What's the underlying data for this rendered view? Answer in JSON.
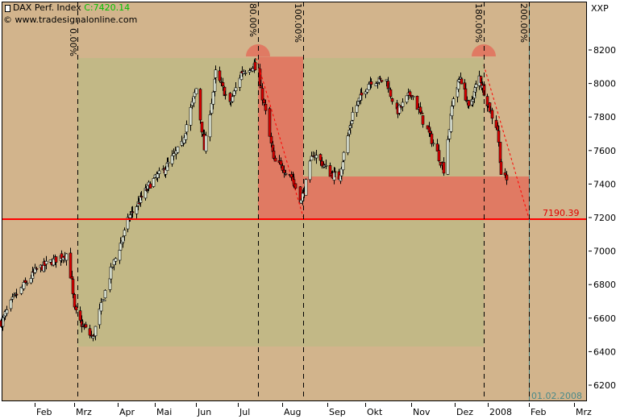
{
  "header": {
    "instrument": "DAX Perf. Index",
    "close_label": "C:7420.14",
    "copyright": "© www.tradesignalonline.com",
    "axis_unit": "XXP"
  },
  "colors": {
    "background": "#d2b48c",
    "zone_olive": "#c2b886",
    "zone_red": "#e07a63",
    "up_candle": "#f0f8e8",
    "down_candle": "#e00000",
    "level_line": "#ff0000",
    "close_text": "#00c000",
    "date_marker": "#4a8a8a"
  },
  "chart_data": {
    "type": "candlestick",
    "title": "DAX Perf. Index",
    "ylabel": "XXP",
    "ylim": [
      6150,
      8300
    ],
    "grid": false,
    "y_ticks": [
      8200,
      8000,
      7800,
      7600,
      7400,
      7200,
      7000,
      6800,
      6600,
      6400,
      6200
    ],
    "x_ticks": [
      "Feb",
      "Mrz",
      "Apr",
      "Mai",
      "Jun",
      "Jul",
      "Aug",
      "Sep",
      "Okt",
      "Nov",
      "Dez",
      "2008",
      "Feb",
      "Mrz"
    ],
    "last_close": 7420.14,
    "approx_closes": [
      [
        "2007-01-08",
        6575
      ],
      [
        "2007-01-17",
        6720
      ],
      [
        "2007-02-02",
        6888
      ],
      [
        "2007-02-23",
        6984
      ],
      [
        "2007-02-27",
        6815
      ],
      [
        "2007-03-01",
        6647
      ],
      [
        "2007-03-05",
        6575
      ],
      [
        "2007-03-14",
        6479
      ],
      [
        "2007-03-20",
        6670
      ],
      [
        "2007-03-28",
        6911
      ],
      [
        "2007-04-10",
        7200
      ],
      [
        "2007-04-26",
        7392
      ],
      [
        "2007-05-08",
        7488
      ],
      [
        "2007-05-21",
        7633
      ],
      [
        "2007-06-01",
        7970
      ],
      [
        "2007-06-07",
        7608
      ],
      [
        "2007-06-15",
        8065
      ],
      [
        "2007-06-25",
        7873
      ],
      [
        "2007-07-03",
        8065
      ],
      [
        "2007-07-12",
        8113
      ],
      [
        "2007-07-18",
        7921
      ],
      [
        "2007-07-26",
        7536
      ],
      [
        "2007-08-06",
        7464
      ],
      [
        "2007-08-14",
        7296
      ],
      [
        "2007-08-22",
        7585
      ],
      [
        "2007-09-03",
        7464
      ],
      [
        "2007-09-10",
        7440
      ],
      [
        "2007-09-21",
        7825
      ],
      [
        "2007-10-04",
        8017
      ],
      [
        "2007-10-15",
        8017
      ],
      [
        "2007-10-22",
        7825
      ],
      [
        "2007-11-01",
        7945
      ],
      [
        "2007-11-09",
        7777
      ],
      [
        "2007-11-19",
        7585
      ],
      [
        "2007-11-23",
        7488
      ],
      [
        "2007-11-30",
        7921
      ],
      [
        "2007-12-06",
        8041
      ],
      [
        "2007-12-14",
        7849
      ],
      [
        "2007-12-24",
        8041
      ],
      [
        "2008-01-03",
        7825
      ],
      [
        "2008-01-08",
        7729
      ],
      [
        "2008-01-11",
        7464
      ],
      [
        "2008-01-15",
        7420
      ]
    ],
    "annotations": {
      "level_value": "7190.39",
      "level": 7190.39,
      "time_cycle_labels": [
        "0.00%",
        "80.00%",
        "100.00%",
        "180.00%",
        "200.00%"
      ],
      "date_marker": "01.02.2008",
      "olive_zone_range": [
        6431,
        8152
      ],
      "red_zone_1_top": 8160,
      "red_zone_2_top": 7445
    }
  }
}
